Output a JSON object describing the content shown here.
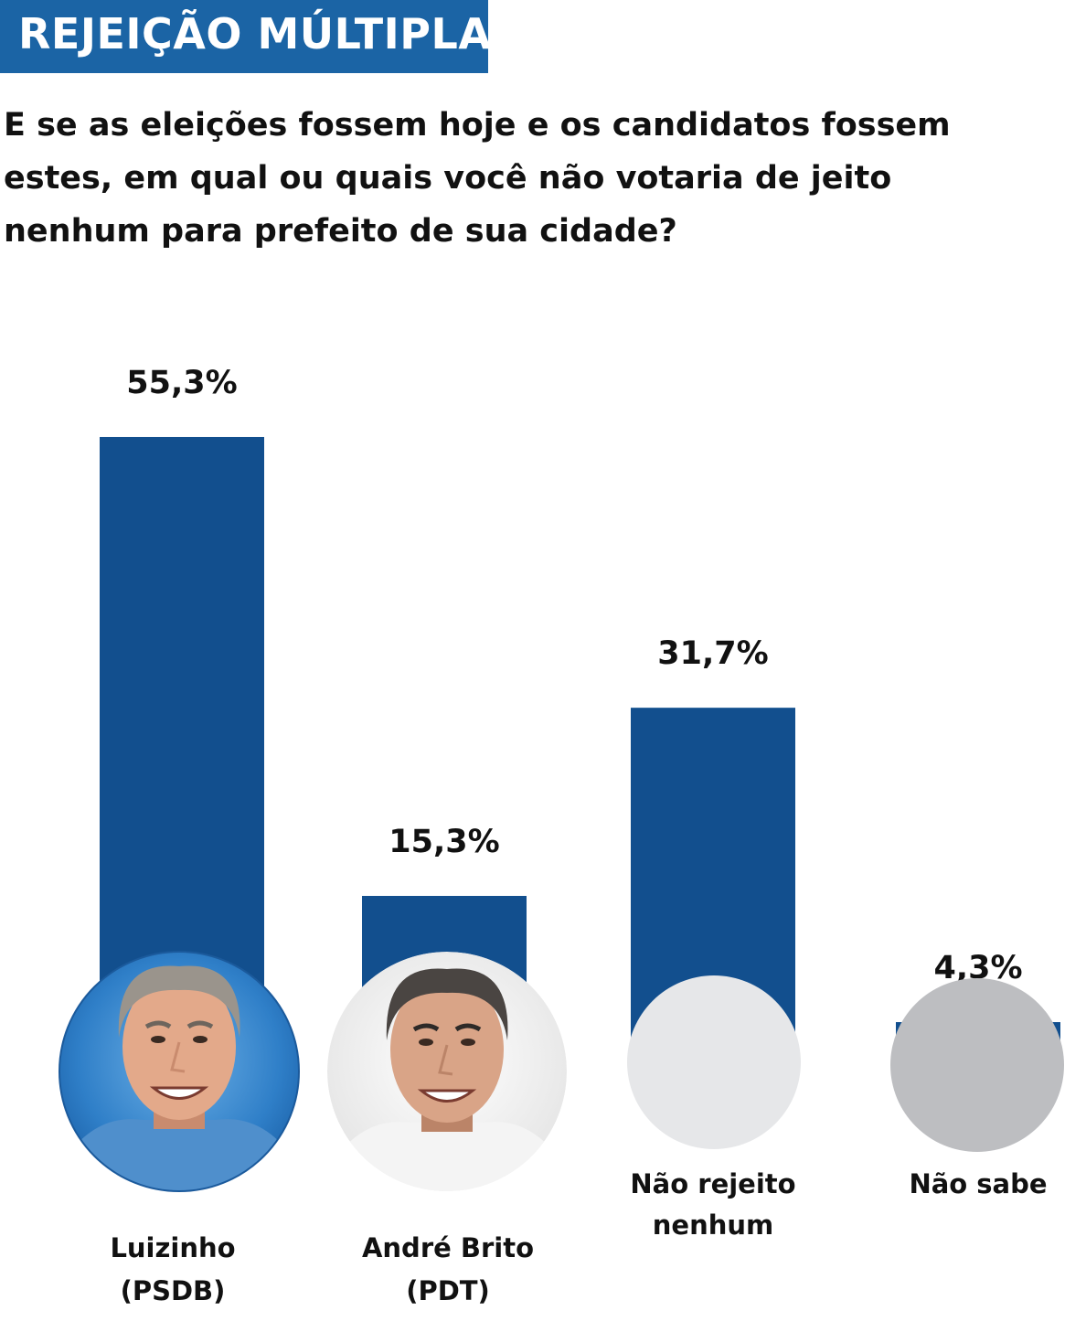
{
  "header": {
    "tag": "REJEIÇÃO MÚLTIPLA",
    "question": "E se as eleições fossem hoje e os candidatos fossem estes, em qual ou quais você não votaria de jeito nenhum para prefeito de sua cidade?"
  },
  "colors": {
    "bar": "#124f8e",
    "tag_background": "#1b64a5",
    "placeholder_light": "#e6e7e9",
    "placeholder_gray": "#bdbec1"
  },
  "chart_data": {
    "type": "bar",
    "categories": [
      [
        "Luizinho",
        "(PSDB)"
      ],
      [
        "André Brito",
        "(PDT)"
      ],
      [
        "Não rejeito",
        "nenhum"
      ],
      [
        "Não sabe"
      ]
    ],
    "values": [
      55.3,
      15.3,
      31.7,
      4.3
    ],
    "value_labels": [
      "55,3%",
      "15,3%",
      "31,7%",
      "4,3%"
    ],
    "markers": [
      "candidate-photo-luizinho",
      "candidate-photo-andre-brito",
      "placeholder-circle-light",
      "placeholder-circle-gray"
    ],
    "grid": false,
    "legend": "none"
  }
}
